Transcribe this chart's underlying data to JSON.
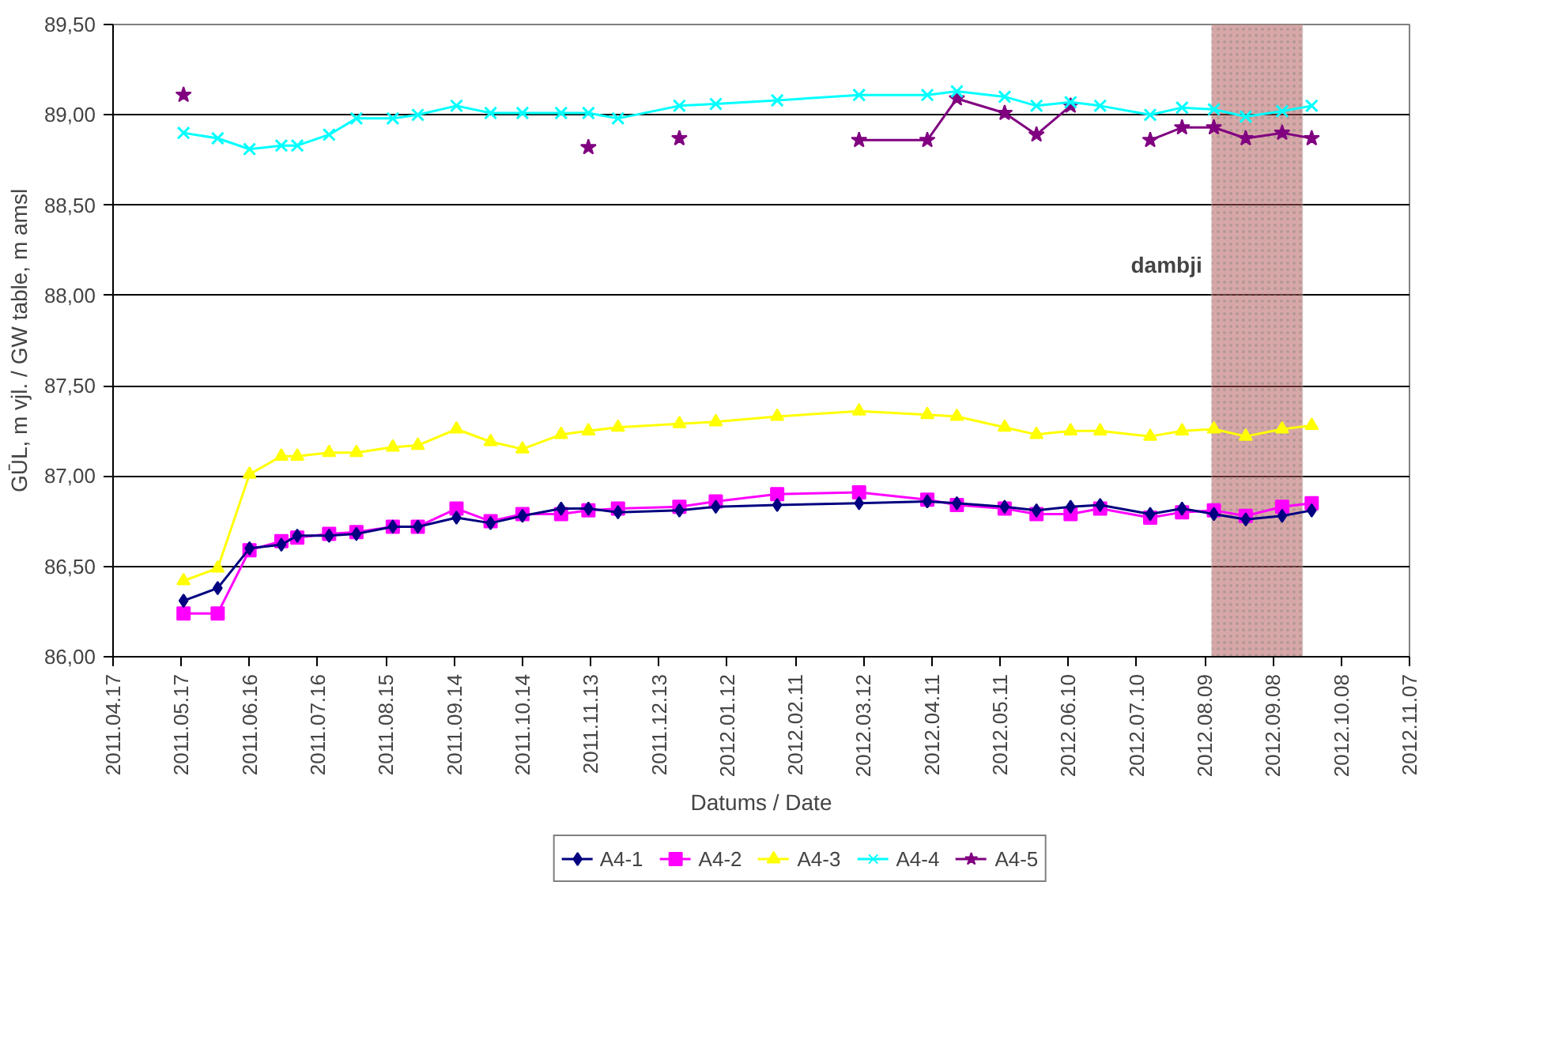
{
  "chart_data": {
    "type": "line",
    "xlabel": "Datums / Date",
    "ylabel": "GŪL, m vjl. / GW table, m amsl",
    "x": [
      "2011-05-18",
      "2011-06-02",
      "2011-06-16",
      "2011-06-30",
      "2011-07-07",
      "2011-07-21",
      "2011-08-02",
      "2011-08-18",
      "2011-08-29",
      "2011-09-15",
      "2011-09-30",
      "2011-10-14",
      "2011-10-31",
      "2011-11-12",
      "2011-11-25",
      "2011-12-22",
      "2012-01-07",
      "2012-02-03",
      "2012-03-10",
      "2012-04-09",
      "2012-04-22",
      "2012-05-13",
      "2012-05-27",
      "2012-06-11",
      "2012-06-24",
      "2012-07-16",
      "2012-07-30",
      "2012-08-13",
      "2012-08-27",
      "2012-09-12",
      "2012-09-25"
    ],
    "series": [
      {
        "name": "A4-1",
        "color": "#000080",
        "marker": "diamond",
        "values": [
          86.31,
          86.38,
          86.6,
          86.62,
          86.67,
          86.67,
          86.68,
          86.72,
          86.72,
          86.77,
          86.74,
          86.78,
          86.82,
          86.82,
          86.8,
          86.81,
          86.83,
          86.84,
          86.85,
          86.86,
          86.85,
          86.83,
          86.81,
          86.83,
          86.84,
          86.79,
          86.82,
          86.79,
          86.76,
          86.78,
          86.81
        ]
      },
      {
        "name": "A4-2",
        "color": "#ff00ff",
        "marker": "square",
        "values": [
          86.24,
          86.24,
          86.59,
          86.64,
          86.66,
          86.68,
          86.69,
          86.72,
          86.72,
          86.82,
          86.75,
          86.79,
          86.79,
          86.81,
          86.82,
          86.83,
          86.86,
          86.9,
          86.91,
          86.87,
          86.84,
          86.82,
          86.79,
          86.79,
          86.82,
          86.77,
          86.8,
          86.81,
          86.78,
          86.83,
          86.85
        ]
      },
      {
        "name": "A4-3",
        "color": "#ffff00",
        "marker": "triangle",
        "values": [
          86.42,
          86.49,
          87.01,
          87.11,
          87.11,
          87.13,
          87.13,
          87.16,
          87.17,
          87.26,
          87.19,
          87.15,
          87.23,
          87.25,
          87.27,
          87.29,
          87.3,
          87.33,
          87.36,
          87.34,
          87.33,
          87.27,
          87.23,
          87.25,
          87.25,
          87.22,
          87.25,
          87.26,
          87.22,
          87.26,
          87.28
        ]
      },
      {
        "name": "A4-4",
        "color": "#00ffff",
        "marker": "cross",
        "values": [
          88.9,
          88.87,
          88.81,
          88.83,
          88.83,
          88.89,
          88.98,
          88.98,
          89.0,
          89.05,
          89.01,
          89.01,
          89.01,
          89.01,
          88.98,
          89.05,
          89.06,
          89.08,
          89.11,
          89.11,
          89.13,
          89.1,
          89.05,
          89.07,
          89.05,
          89.0,
          89.04,
          89.03,
          88.99,
          89.02,
          89.05
        ]
      },
      {
        "name": "A4-5",
        "color": "#800080",
        "marker": "star",
        "values": [
          89.11,
          null,
          null,
          null,
          null,
          null,
          null,
          null,
          null,
          null,
          null,
          null,
          null,
          88.82,
          null,
          88.87,
          null,
          null,
          88.86,
          88.86,
          89.09,
          89.01,
          88.89,
          89.05,
          null,
          88.86,
          88.93,
          88.93,
          88.87,
          88.9,
          88.87
        ]
      }
    ],
    "bands": [
      {
        "axis": "x",
        "from": "2012-08-12",
        "to": "2012-09-21",
        "label": "dambji",
        "color": "#b05050"
      }
    ],
    "xlim": [
      "2011-04-17",
      "2012-11-07"
    ],
    "xticks": [
      {
        "value": "2011-04-17",
        "label": "2011.04.17"
      },
      {
        "value": "2011-05-17",
        "label": "2011.05.17"
      },
      {
        "value": "2011-06-16",
        "label": "2011.06.16"
      },
      {
        "value": "2011-07-16",
        "label": "2011.07.16"
      },
      {
        "value": "2011-08-15",
        "label": "2011.08.15"
      },
      {
        "value": "2011-09-14",
        "label": "2011.09.14"
      },
      {
        "value": "2011-10-14",
        "label": "2011.10.14"
      },
      {
        "value": "2011-11-13",
        "label": "2011.11.13"
      },
      {
        "value": "2011-12-13",
        "label": "2011.12.13"
      },
      {
        "value": "2012-01-12",
        "label": "2012.01.12"
      },
      {
        "value": "2012-02-11",
        "label": "2012.02.11"
      },
      {
        "value": "2012-03-12",
        "label": "2012.03.12"
      },
      {
        "value": "2012-04-11",
        "label": "2012.04.11"
      },
      {
        "value": "2012-05-11",
        "label": "2012.05.11"
      },
      {
        "value": "2012-06-10",
        "label": "2012.06.10"
      },
      {
        "value": "2012-07-10",
        "label": "2012.07.10"
      },
      {
        "value": "2012-08-09",
        "label": "2012.08.09"
      },
      {
        "value": "2012-09-08",
        "label": "2012.09.08"
      },
      {
        "value": "2012-10-08",
        "label": "2012.10.08"
      },
      {
        "value": "2012-11-07",
        "label": "2012.11.07"
      }
    ],
    "ylim": [
      86.0,
      89.5
    ],
    "yticks": [
      {
        "value": 86.0,
        "label": "86,00"
      },
      {
        "value": 86.5,
        "label": "86,50"
      },
      {
        "value": 87.0,
        "label": "87,00"
      },
      {
        "value": 87.5,
        "label": "87,50"
      },
      {
        "value": 88.0,
        "label": "88,00"
      },
      {
        "value": 88.5,
        "label": "88,50"
      },
      {
        "value": 89.0,
        "label": "89,00"
      },
      {
        "value": 89.5,
        "label": "89,50"
      }
    ],
    "grid": "y",
    "legend": "bottom",
    "line_style": "solid"
  }
}
